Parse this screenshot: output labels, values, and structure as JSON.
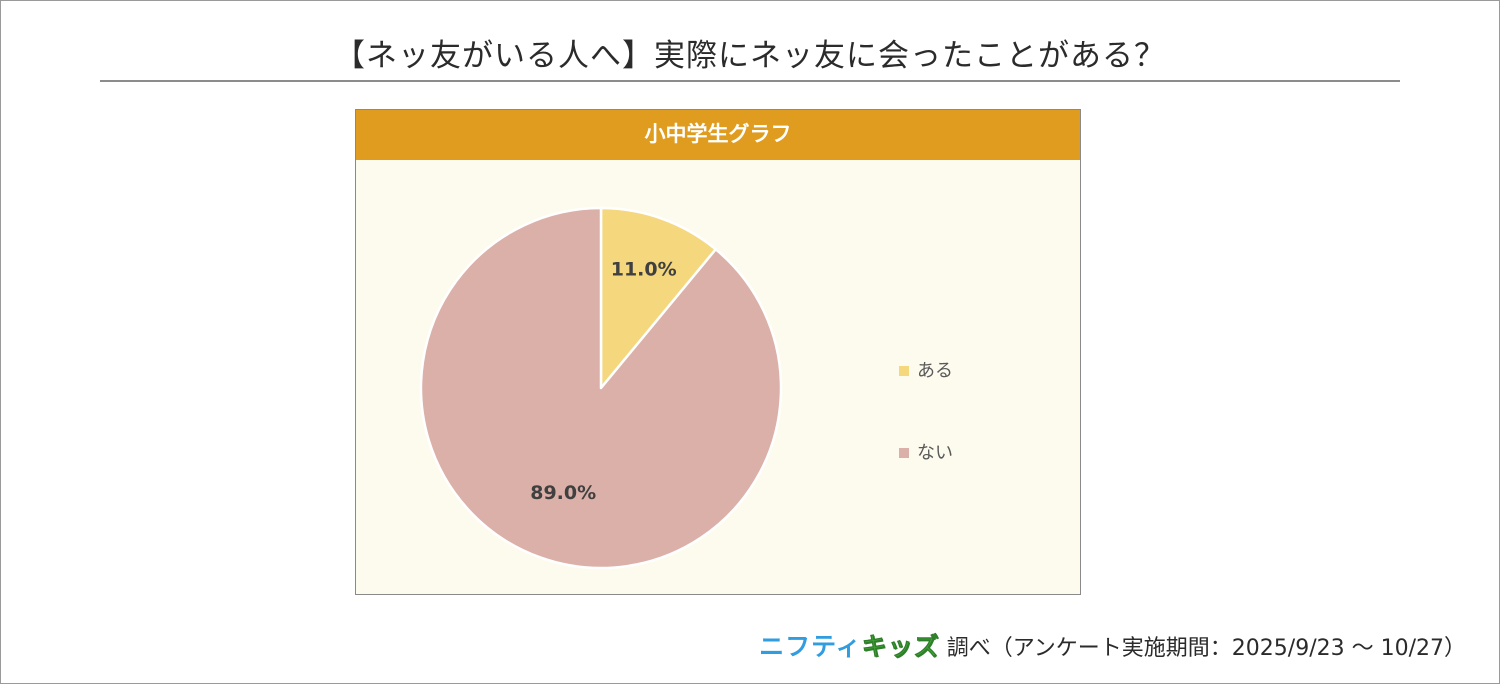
{
  "title": "【ネッ友がいる人へ】実際にネッ友に会ったことがある？",
  "chart_data": {
    "type": "pie",
    "title": "小中学生グラフ",
    "start_angle_deg": 0,
    "direction": "clockwise",
    "legend_position": "right",
    "slices": [
      {
        "label": "ある",
        "value": 11.0,
        "display": "11.0%",
        "color": "#f5d77e"
      },
      {
        "label": "ない",
        "value": 89.0,
        "display": "89.0%",
        "color": "#dbb0a8"
      }
    ]
  },
  "footer": {
    "brand_part1": "ニフティ",
    "brand_part2": "キッズ",
    "note": "調べ（アンケート実施期間：2025/9/23 ～ 10/27）"
  }
}
